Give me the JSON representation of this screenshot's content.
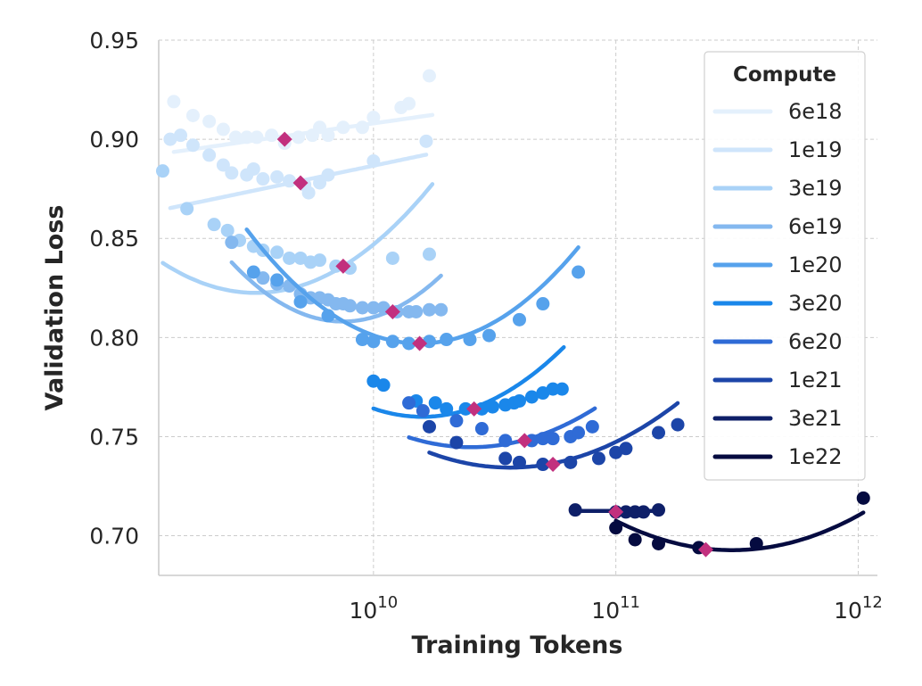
{
  "chart_data": {
    "type": "line",
    "xlabel": "Training Tokens",
    "ylabel": "Validation Loss",
    "x_scale": "log",
    "xlim": [
      1300000000.0,
      1200000000000.0
    ],
    "ylim": [
      0.68,
      0.95
    ],
    "x_ticks": [
      {
        "value": 10000000000.0,
        "base": "10",
        "exp": "10"
      },
      {
        "value": 100000000000.0,
        "base": "10",
        "exp": "11"
      },
      {
        "value": 1000000000000.0,
        "base": "10",
        "exp": "12"
      }
    ],
    "y_ticks": [
      "0.70",
      "0.75",
      "0.80",
      "0.85",
      "0.90",
      "0.95"
    ],
    "grid": true,
    "legend": {
      "title": "Compute",
      "position": "top-right"
    },
    "optimum_marker_color": "#c2307e",
    "series": [
      {
        "name": "6e18",
        "color": "#e4f0fc",
        "fit": {
          "xmin": 1500000000.0,
          "xmax": 17500000000.0,
          "a": 1.105e-05,
          "b": 0.0175,
          "c": 0.9016
        },
        "optimum": {
          "x": 4300000000.0,
          "y": 0.9
        },
        "points": [
          [
            1500000000.0,
            0.919
          ],
          [
            1800000000.0,
            0.912
          ],
          [
            2100000000.0,
            0.909
          ],
          [
            2400000000.0,
            0.905
          ],
          [
            2700000000.0,
            0.901
          ],
          [
            3000000000.0,
            0.901
          ],
          [
            3300000000.0,
            0.901
          ],
          [
            3800000000.0,
            0.902
          ],
          [
            4300000000.0,
            0.898
          ],
          [
            4900000000.0,
            0.901
          ],
          [
            5600000000.0,
            0.902
          ],
          [
            6000000000.0,
            0.906
          ],
          [
            6500000000.0,
            0.902
          ],
          [
            7500000000.0,
            0.906
          ],
          [
            9000000000.0,
            0.906
          ],
          [
            10000000000.0,
            0.911
          ],
          [
            13000000000.0,
            0.916
          ],
          [
            14000000000.0,
            0.918
          ],
          [
            17000000000.0,
            0.932
          ]
        ]
      },
      {
        "name": "1e19",
        "color": "#cfe5fb",
        "fit": {
          "xmin": 1450000000.0,
          "xmax": 16500000000.0,
          "a": 2.02e-05,
          "b": 0.0255,
          "c": 0.879
        },
        "optimum": {
          "x": 5000000000.0,
          "y": 0.878
        },
        "points": [
          [
            1450000000.0,
            0.9
          ],
          [
            1600000000.0,
            0.902
          ],
          [
            1800000000.0,
            0.897
          ],
          [
            2100000000.0,
            0.892
          ],
          [
            2400000000.0,
            0.887
          ],
          [
            2600000000.0,
            0.883
          ],
          [
            3000000000.0,
            0.882
          ],
          [
            3200000000.0,
            0.885
          ],
          [
            3500000000.0,
            0.88
          ],
          [
            4000000000.0,
            0.881
          ],
          [
            4500000000.0,
            0.879
          ],
          [
            5200000000.0,
            0.877
          ],
          [
            5400000000.0,
            0.873
          ],
          [
            6000000000.0,
            0.878
          ],
          [
            6500000000.0,
            0.882
          ],
          [
            10000000000.0,
            0.889
          ],
          [
            16500000000.0,
            0.899
          ]
        ]
      },
      {
        "name": "3e19",
        "color": "#a9d2f7",
        "fit": {
          "xmin": 1350000000.0,
          "xmax": 17500000000.0,
          "a": 0.103,
          "b": 0.0745,
          "c": 0.836
        },
        "optimum": {
          "x": 7500000000.0,
          "y": 0.836
        },
        "points": [
          [
            1350000000.0,
            0.884
          ],
          [
            1700000000.0,
            0.865
          ],
          [
            2200000000.0,
            0.857
          ],
          [
            2500000000.0,
            0.854
          ],
          [
            2800000000.0,
            0.849
          ],
          [
            3200000000.0,
            0.846
          ],
          [
            3500000000.0,
            0.844
          ],
          [
            4000000000.0,
            0.843
          ],
          [
            4500000000.0,
            0.84
          ],
          [
            5000000000.0,
            0.84
          ],
          [
            5500000000.0,
            0.838
          ],
          [
            6000000000.0,
            0.839
          ],
          [
            7000000000.0,
            0.836
          ],
          [
            8000000000.0,
            0.835
          ],
          [
            12000000000.0,
            0.84
          ],
          [
            17000000000.0,
            0.842
          ]
        ]
      },
      {
        "name": "6e19",
        "color": "#84b8ef",
        "fit": {
          "xmin": 2600000000.0,
          "xmax": 19000000000.0,
          "a": 0.1415,
          "b": 0.058,
          "c": 0.814
        },
        "optimum": {
          "x": 12000000000.0,
          "y": 0.813
        },
        "points": [
          [
            2600000000.0,
            0.848
          ],
          [
            3500000000.0,
            0.83
          ],
          [
            4000000000.0,
            0.827
          ],
          [
            4500000000.0,
            0.826
          ],
          [
            5000000000.0,
            0.822
          ],
          [
            5500000000.0,
            0.82
          ],
          [
            6000000000.0,
            0.82
          ],
          [
            6500000000.0,
            0.819
          ],
          [
            7000000000.0,
            0.817
          ],
          [
            7500000000.0,
            0.817
          ],
          [
            8000000000.0,
            0.816
          ],
          [
            9000000000.0,
            0.815
          ],
          [
            10000000000.0,
            0.815
          ],
          [
            11000000000.0,
            0.815
          ],
          [
            12500000000.0,
            0.813
          ],
          [
            14000000000.0,
            0.813
          ],
          [
            15000000000.0,
            0.813
          ],
          [
            17000000000.0,
            0.814
          ],
          [
            19000000000.0,
            0.814
          ]
        ]
      },
      {
        "name": "1e20",
        "color": "#56a2ec",
        "fit": {
          "xmin": 3000000000.0,
          "xmax": 70000000000.0,
          "a": 0.113,
          "b": 0.0,
          "c": 0.797
        },
        "optimum": {
          "x": 15500000000.0,
          "y": 0.797
        },
        "points": [
          [
            3200000000.0,
            0.833
          ],
          [
            4000000000.0,
            0.829
          ],
          [
            5000000000.0,
            0.818
          ],
          [
            6500000000.0,
            0.811
          ],
          [
            9000000000.0,
            0.799
          ],
          [
            10000000000.0,
            0.798
          ],
          [
            12000000000.0,
            0.798
          ],
          [
            14000000000.0,
            0.797
          ],
          [
            17000000000.0,
            0.798
          ],
          [
            20000000000.0,
            0.799
          ],
          [
            25000000000.0,
            0.799
          ],
          [
            30000000000.0,
            0.801
          ],
          [
            40000000000.0,
            0.809
          ],
          [
            50000000000.0,
            0.817
          ],
          [
            70000000000.0,
            0.833
          ]
        ]
      },
      {
        "name": "3e20",
        "color": "#1a87ea",
        "fit": {
          "xmin": 10000000000.0,
          "xmax": 61000000000.0,
          "a": 0.103,
          "b": 0.044,
          "c": 0.7647
        },
        "optimum": {
          "x": 26000000000.0,
          "y": 0.764
        },
        "points": [
          [
            10000000000.0,
            0.778
          ],
          [
            11000000000.0,
            0.776
          ],
          [
            15000000000.0,
            0.768
          ],
          [
            18000000000.0,
            0.767
          ],
          [
            20000000000.0,
            0.764
          ],
          [
            24000000000.0,
            0.764
          ],
          [
            28000000000.0,
            0.764
          ],
          [
            31000000000.0,
            0.765
          ],
          [
            35000000000.0,
            0.766
          ],
          [
            38000000000.0,
            0.767
          ],
          [
            40000000000.0,
            0.768
          ],
          [
            45000000000.0,
            0.77
          ],
          [
            50000000000.0,
            0.772
          ],
          [
            55000000000.0,
            0.774
          ],
          [
            60000000000.0,
            0.774
          ]
        ]
      },
      {
        "name": "6e20",
        "color": "#2f6bd6",
        "fit": {
          "xmin": 14000000000.0,
          "xmax": 82000000000.0,
          "a": 0.075,
          "b": 0.033,
          "c": 0.7483
        },
        "optimum": {
          "x": 42000000000.0,
          "y": 0.748
        },
        "points": [
          [
            14000000000.0,
            0.767
          ],
          [
            16000000000.0,
            0.763
          ],
          [
            22000000000.0,
            0.758
          ],
          [
            28000000000.0,
            0.754
          ],
          [
            35000000000.0,
            0.748
          ],
          [
            45000000000.0,
            0.748
          ],
          [
            50000000000.0,
            0.749
          ],
          [
            55000000000.0,
            0.749
          ],
          [
            65000000000.0,
            0.75
          ],
          [
            70000000000.0,
            0.752
          ],
          [
            80000000000.0,
            0.755
          ]
        ]
      },
      {
        "name": "1e21",
        "color": "#1c45a8",
        "fit": {
          "xmin": 17000000000.0,
          "xmax": 180000000000.0,
          "a": 0.068,
          "b": 0.024,
          "c": 0.7365
        },
        "optimum": {
          "x": 55000000000.0,
          "y": 0.736
        },
        "points": [
          [
            17000000000.0,
            0.755
          ],
          [
            22000000000.0,
            0.747
          ],
          [
            35000000000.0,
            0.739
          ],
          [
            40000000000.0,
            0.737
          ],
          [
            50000000000.0,
            0.736
          ],
          [
            65000000000.0,
            0.737
          ],
          [
            85000000000.0,
            0.739
          ],
          [
            100000000000.0,
            0.742
          ],
          [
            110000000000.0,
            0.744
          ],
          [
            150000000000.0,
            0.752
          ],
          [
            180000000000.0,
            0.756
          ]
        ]
      },
      {
        "name": "3e21",
        "color": "#0e1f68",
        "fit": {
          "xmin": 68000000000.0,
          "xmax": 150000000000.0,
          "a": 0.0,
          "b": 0.0,
          "c": 0.7125
        },
        "optimum": {
          "x": 100000000000.0,
          "y": 0.712
        },
        "points": [
          [
            68000000000.0,
            0.713
          ],
          [
            100000000000.0,
            0.712
          ],
          [
            110000000000.0,
            0.712
          ],
          [
            120000000000.0,
            0.712
          ],
          [
            130000000000.0,
            0.712
          ],
          [
            150000000000.0,
            0.713
          ]
        ]
      },
      {
        "name": "1e22",
        "color": "#050b40",
        "fit": {
          "xmin": 100000000000.0,
          "xmax": 1050000000000.0,
          "a": 0.0645,
          "b": -0.014,
          "c": 0.6935
        },
        "optimum": {
          "x": 235000000000.0,
          "y": 0.693
        },
        "points": [
          [
            100000000000.0,
            0.704
          ],
          [
            120000000000.0,
            0.698
          ],
          [
            150000000000.0,
            0.696
          ],
          [
            220000000000.0,
            0.694
          ],
          [
            380000000000.0,
            0.696
          ],
          [
            1050000000000.0,
            0.719
          ]
        ]
      }
    ]
  }
}
